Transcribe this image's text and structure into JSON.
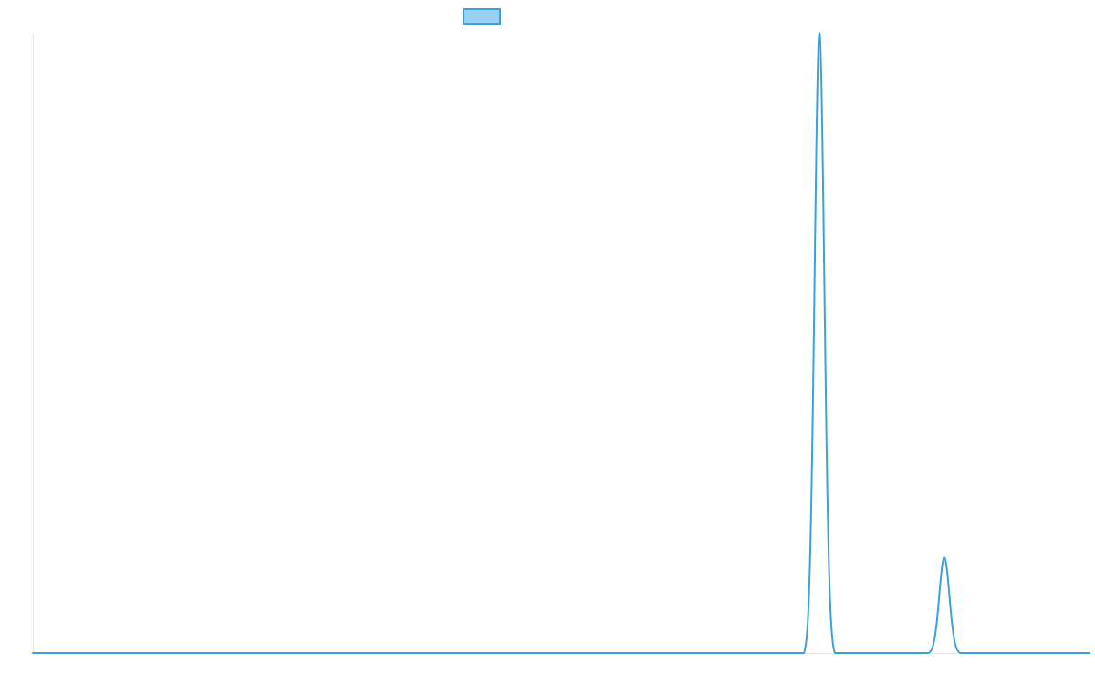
{
  "chart_data": {
    "type": "line",
    "title": "",
    "xlabel": "",
    "ylabel": "",
    "grid": false,
    "legend_placement": "top-center",
    "colors": {
      "line": "#3ba1dd",
      "legend_fill": "#9ad0f5",
      "axis": "#e6e6e6"
    },
    "xlim": [
      0,
      1000
    ],
    "ylim": [
      0,
      100
    ],
    "series": [
      {
        "peaks": [
          {
            "center": 744.4,
            "height": 100,
            "sigma": 4.6,
            "cutoff": 3.2
          },
          {
            "center": 862.6,
            "height": 15.4,
            "sigma": 4.8,
            "cutoff": 3.2
          }
        ]
      }
    ]
  }
}
